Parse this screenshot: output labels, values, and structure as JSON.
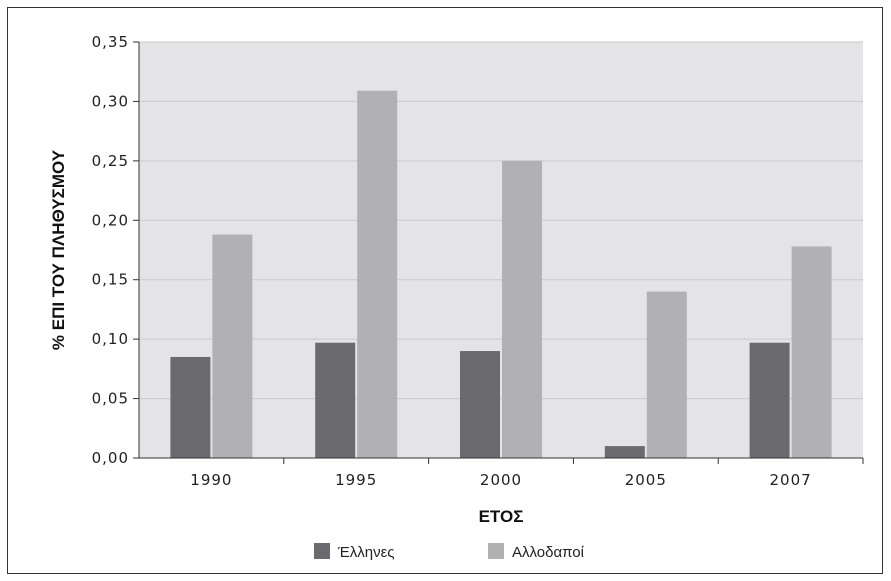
{
  "chart_data": {
    "type": "bar",
    "categories": [
      "1990",
      "1995",
      "2000",
      "2005",
      "2007"
    ],
    "series": [
      {
        "name": "Έλληνες",
        "values": [
          0.085,
          0.097,
          0.09,
          0.01,
          0.097
        ],
        "color": "#6b6b6f"
      },
      {
        "name": "Αλλοδαποί",
        "values": [
          0.188,
          0.309,
          0.25,
          0.14,
          0.178
        ],
        "color": "#b1b1b4"
      }
    ],
    "xlabel": "ΕΤΟΣ",
    "ylabel": "% ΕΠΙ ΤΟΥ ΠΛΗΘΥΣΜΟΥ",
    "ylim": [
      0,
      0.35
    ],
    "yticks": [
      "0,00",
      "0,05",
      "0,10",
      "0,15",
      "0,20",
      "0,25",
      "0,30",
      "0,35"
    ],
    "grid": true,
    "plot_background": "#e4e4e6",
    "legend_position": "bottom"
  }
}
